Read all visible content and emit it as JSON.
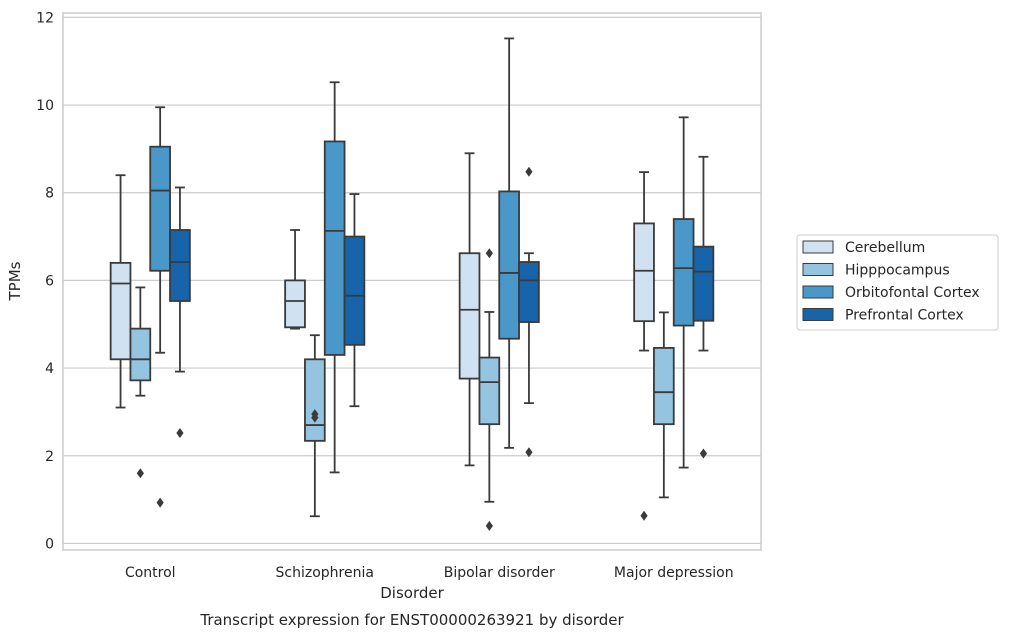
{
  "chart_data": {
    "type": "box",
    "title": "",
    "caption": "Transcript expression for ENST00000263921 by disorder",
    "xlabel": "Disorder",
    "ylabel": "TPMs",
    "ylim": [
      -0.15,
      12.1
    ],
    "yticks": [
      0,
      2,
      4,
      6,
      8,
      10,
      12
    ],
    "grid": "horizontal",
    "legend_position": "right",
    "categories": [
      "Control",
      "Schizophrenia",
      "Bipolar disorder",
      "Major depression"
    ],
    "series": [
      {
        "name": "Cerebellum",
        "color": "#d0e1f2",
        "boxes": [
          {
            "whisker_low": 3.1,
            "q1": 4.2,
            "median": 5.93,
            "q3": 6.4,
            "whisker_high": 8.4,
            "outliers": []
          },
          {
            "whisker_low": 4.9,
            "q1": 4.93,
            "median": 5.53,
            "q3": 6.0,
            "whisker_high": 7.15,
            "outliers": []
          },
          {
            "whisker_low": 1.78,
            "q1": 3.76,
            "median": 5.33,
            "q3": 6.62,
            "whisker_high": 8.9,
            "outliers": []
          },
          {
            "whisker_low": 4.4,
            "q1": 5.07,
            "median": 6.22,
            "q3": 7.3,
            "whisker_high": 8.47,
            "outliers": [
              0.63
            ]
          }
        ]
      },
      {
        "name": "Hipppocampus",
        "color": "#94c4df",
        "boxes": [
          {
            "whisker_low": 3.37,
            "q1": 3.72,
            "median": 4.2,
            "q3": 4.9,
            "whisker_high": 5.84,
            "outliers": [
              1.6
            ]
          },
          {
            "whisker_low": 0.62,
            "q1": 2.34,
            "median": 2.7,
            "q3": 4.2,
            "whisker_high": 4.75,
            "outliers": [
              2.95,
              2.87
            ]
          },
          {
            "whisker_low": 0.95,
            "q1": 2.72,
            "median": 3.68,
            "q3": 4.24,
            "whisker_high": 5.28,
            "outliers": [
              6.62,
              0.4
            ]
          },
          {
            "whisker_low": 1.05,
            "q1": 2.72,
            "median": 3.45,
            "q3": 4.46,
            "whisker_high": 5.27,
            "outliers": []
          }
        ]
      },
      {
        "name": "Orbitofontal Cortex",
        "color": "#4a98c9",
        "boxes": [
          {
            "whisker_low": 4.35,
            "q1": 6.22,
            "median": 8.05,
            "q3": 9.05,
            "whisker_high": 9.95,
            "outliers": [
              0.93
            ]
          },
          {
            "whisker_low": 1.62,
            "q1": 4.3,
            "median": 7.13,
            "q3": 9.17,
            "whisker_high": 10.52,
            "outliers": []
          },
          {
            "whisker_low": 2.18,
            "q1": 4.67,
            "median": 6.17,
            "q3": 8.03,
            "whisker_high": 11.52,
            "outliers": []
          },
          {
            "whisker_low": 1.73,
            "q1": 4.97,
            "median": 6.28,
            "q3": 7.4,
            "whisker_high": 9.72,
            "outliers": []
          }
        ]
      },
      {
        "name": "Prefrontal Cortex",
        "color": "#1764ab",
        "boxes": [
          {
            "whisker_low": 3.92,
            "q1": 5.53,
            "median": 6.42,
            "q3": 7.15,
            "whisker_high": 8.12,
            "outliers": [
              2.52
            ]
          },
          {
            "whisker_low": 3.13,
            "q1": 4.53,
            "median": 5.65,
            "q3": 7.0,
            "whisker_high": 7.97,
            "outliers": []
          },
          {
            "whisker_low": 3.2,
            "q1": 5.05,
            "median": 6.0,
            "q3": 6.42,
            "whisker_high": 6.62,
            "outliers": [
              8.48,
              2.08
            ]
          },
          {
            "whisker_low": 4.4,
            "q1": 5.08,
            "median": 6.2,
            "q3": 6.77,
            "whisker_high": 8.82,
            "outliers": [
              2.05
            ]
          }
        ]
      }
    ]
  }
}
